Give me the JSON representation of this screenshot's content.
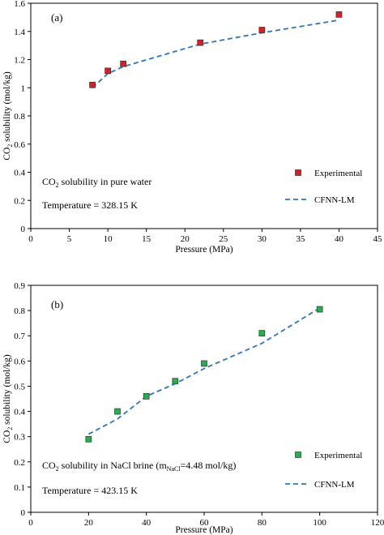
{
  "chart_data": [
    {
      "type": "scatter",
      "panel_label": "(a)",
      "xlabel": "Pressure (MPa)",
      "ylabel": "CO2 solubility (mol/kg)",
      "ylabel_parts": {
        "pre": "CO",
        "sub": "2",
        "post": " solubility (mol/kg)"
      },
      "xlim": [
        0,
        45
      ],
      "ylim": [
        0,
        1.6
      ],
      "xticks": [
        0,
        5,
        10,
        15,
        20,
        25,
        30,
        35,
        40,
        45
      ],
      "yticks": [
        0,
        0.2,
        0.4,
        0.6,
        0.8,
        1,
        1.2,
        1.4,
        1.6
      ],
      "ytick_labels": [
        "0",
        "0.2",
        "0.4",
        "0.6",
        "0.8",
        "1",
        "1.2",
        "1.4",
        "1.6"
      ],
      "grid": false,
      "legend_position": "bottom-right",
      "annotations": {
        "title_parts": {
          "pre": "CO",
          "sub": "2",
          "post": " solubility in pure water"
        },
        "temperature": "Temperature = 328.15 K"
      },
      "series": [
        {
          "name": "Experimental",
          "style": "marker",
          "color": "#d62027",
          "x": [
            8,
            10,
            12,
            22,
            30,
            40
          ],
          "y": [
            1.02,
            1.12,
            1.17,
            1.32,
            1.41,
            1.52
          ]
        },
        {
          "name": "CFNN-LM",
          "style": "dashed-line",
          "color": "#2e75b6",
          "x": [
            8,
            10,
            12,
            22,
            30,
            40
          ],
          "y": [
            1.0,
            1.1,
            1.15,
            1.31,
            1.39,
            1.48
          ]
        }
      ]
    },
    {
      "type": "scatter",
      "panel_label": "(b)",
      "xlabel": "Pressure (MPa)",
      "ylabel": "CO2 solubility (mol/kg)",
      "ylabel_parts": {
        "pre": "CO",
        "sub": "2",
        "post": " solubility (mol/kg)"
      },
      "xlim": [
        0,
        120
      ],
      "ylim": [
        0,
        0.9
      ],
      "xticks": [
        0,
        20,
        40,
        60,
        80,
        100,
        120
      ],
      "yticks": [
        0,
        0.1,
        0.2,
        0.3,
        0.4,
        0.5,
        0.6,
        0.7,
        0.8,
        0.9
      ],
      "ytick_labels": [
        "0",
        "0.1",
        "0.2",
        "0.3",
        "0.4",
        "0.5",
        "0.6",
        "0.7",
        "0.8",
        "0.9"
      ],
      "grid": false,
      "legend_position": "bottom-right",
      "annotations": {
        "title_parts": {
          "pre": "CO",
          "sub": "2",
          "post": " solubility in NaCl brine (m",
          "sub2": "NaCl",
          "post2": "=4.48 mol/kg)"
        },
        "temperature": "Temperature = 423.15 K"
      },
      "series": [
        {
          "name": "Experimental",
          "style": "marker",
          "color": "#22b14c",
          "x": [
            20,
            30,
            40,
            50,
            60,
            80,
            100
          ],
          "y": [
            0.29,
            0.4,
            0.46,
            0.52,
            0.59,
            0.71,
            0.805
          ]
        },
        {
          "name": "CFNN-LM",
          "style": "dashed-line",
          "color": "#2e75b6",
          "x": [
            20,
            30,
            40,
            50,
            60,
            80,
            100
          ],
          "y": [
            0.31,
            0.37,
            0.46,
            0.51,
            0.57,
            0.67,
            0.81
          ]
        }
      ]
    }
  ]
}
